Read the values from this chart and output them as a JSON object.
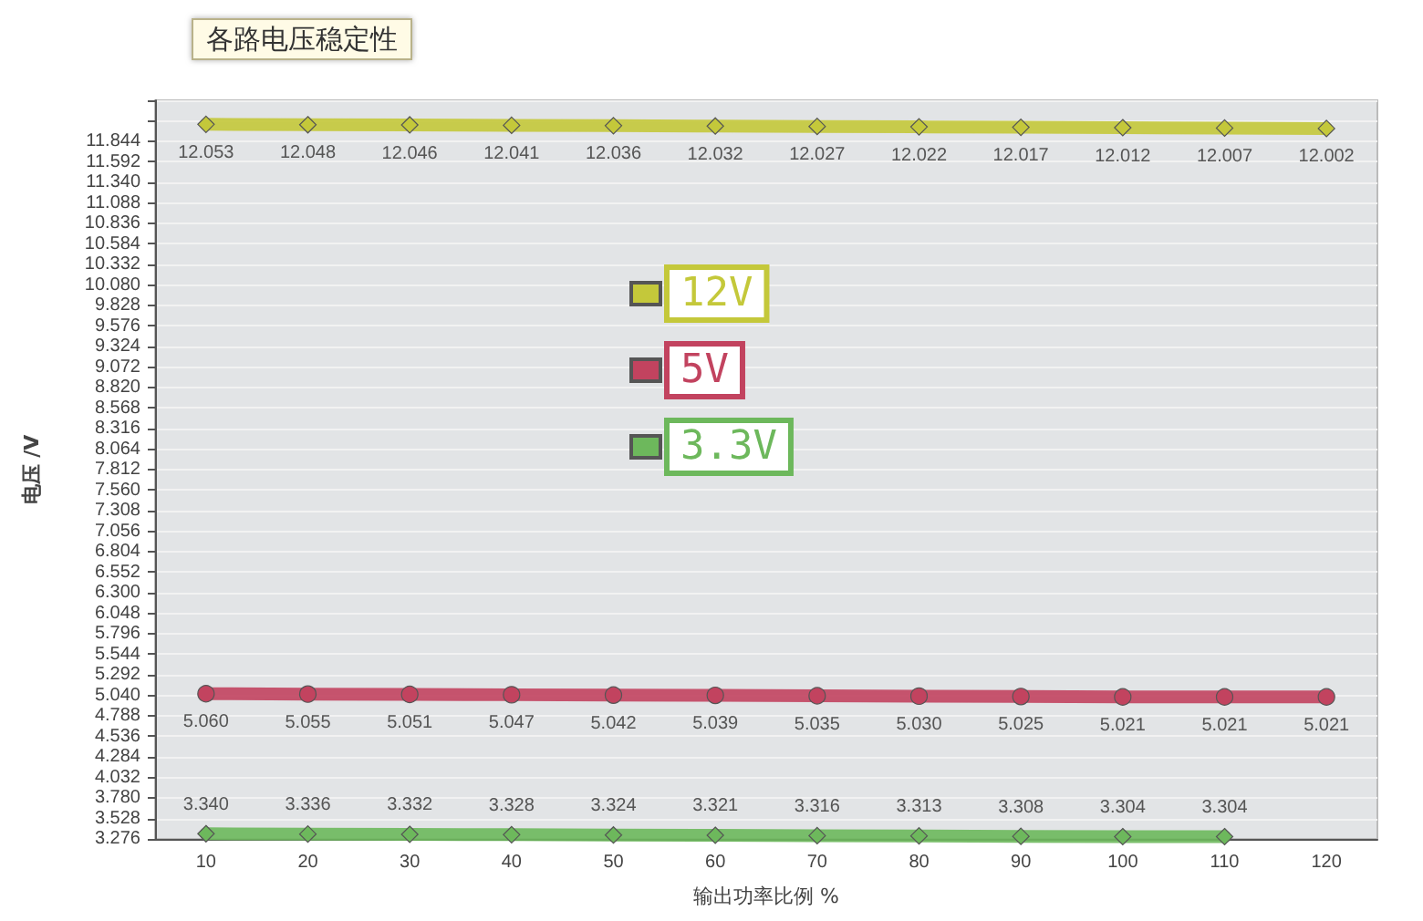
{
  "chart_data": {
    "type": "line",
    "title": "各路电压稳定性",
    "xlabel": "输出功率比例 %",
    "ylabel": "电压 /V",
    "categories": [
      "10",
      "20",
      "30",
      "40",
      "50",
      "60",
      "70",
      "80",
      "90",
      "100",
      "110",
      "120"
    ],
    "series": [
      {
        "name": "12V",
        "color": "#c4c83a",
        "marker": "diamond",
        "values": [
          12.053,
          12.048,
          12.046,
          12.041,
          12.036,
          12.032,
          12.027,
          12.022,
          12.017,
          12.012,
          12.007,
          12.002
        ],
        "value_labels": [
          "12.053",
          "12.048",
          "12.046",
          "12.041",
          "12.036",
          "12.032",
          "12.027",
          "12.022",
          "12.017",
          "12.012",
          "12.007",
          "12.002"
        ]
      },
      {
        "name": "5V",
        "color": "#c2435f",
        "marker": "circle",
        "values": [
          5.06,
          5.055,
          5.051,
          5.047,
          5.042,
          5.039,
          5.035,
          5.03,
          5.025,
          5.021,
          5.021,
          5.021
        ],
        "value_labels": [
          "5.060",
          "5.055",
          "5.051",
          "5.047",
          "5.042",
          "5.039",
          "5.035",
          "5.030",
          "5.025",
          "5.021",
          "5.021",
          "5.021"
        ]
      },
      {
        "name": "3.3V",
        "color": "#6db85c",
        "marker": "diamond",
        "values": [
          3.34,
          3.336,
          3.332,
          3.328,
          3.324,
          3.321,
          3.316,
          3.313,
          3.308,
          3.304,
          3.304,
          null
        ],
        "value_labels": [
          "3.340",
          "3.336",
          "3.332",
          "3.328",
          "3.324",
          "3.321",
          "3.316",
          "3.313",
          "3.308",
          "3.304",
          "3.304",
          null
        ]
      }
    ],
    "ylim": [
      3.276,
      12.348
    ],
    "yticks": [
      3.276,
      3.528,
      {
        "value": 3.78,
        "label": "3.780"
      },
      4.032,
      4.284,
      4.536,
      4.788,
      {
        "value": 5.04,
        "label": "5.040"
      },
      5.292,
      5.544,
      5.796,
      6.048,
      {
        "value": 6.3,
        "label": "6.300"
      },
      6.552,
      6.804,
      7.056,
      7.308,
      {
        "value": 7.56,
        "label": "7.560"
      },
      7.812,
      8.064,
      8.316,
      8.568,
      {
        "value": 8.82,
        "label": "8.820"
      },
      9.072,
      9.324,
      9.576,
      9.828,
      {
        "value": 10.08,
        "label": "10.080"
      },
      10.332,
      10.584,
      10.836,
      11.088,
      {
        "value": 11.34,
        "label": "11.340"
      },
      11.592,
      11.844
    ],
    "grid": "y",
    "legend": "top left"
  }
}
